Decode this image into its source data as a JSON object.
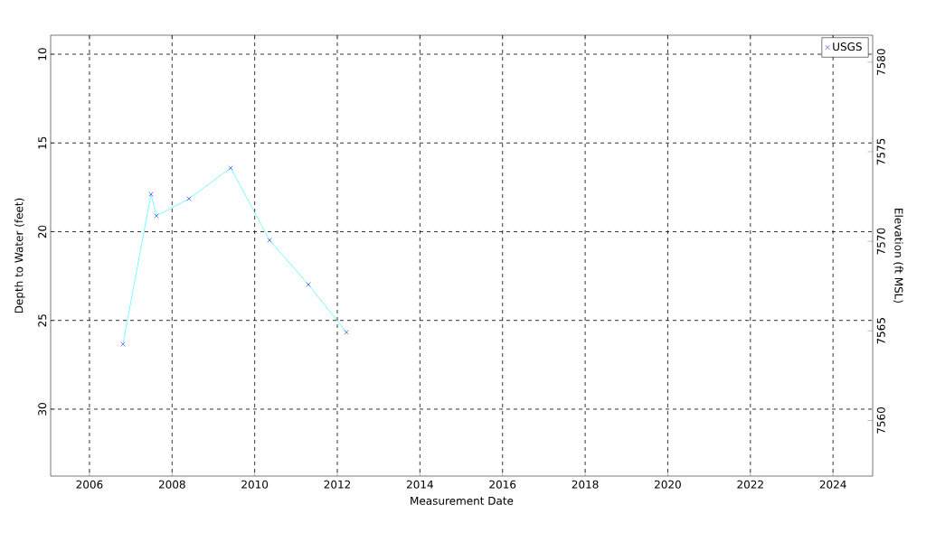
{
  "chart_data": {
    "type": "line",
    "xlabel": "Measurement Date",
    "ylabel": "Depth to Water (feet)",
    "y2label": "Elevation (ft MSL)",
    "xlim": [
      2005.06,
      2024.96
    ],
    "xticks": [
      2006,
      2008,
      2010,
      2012,
      2014,
      2016,
      2018,
      2020,
      2022,
      2024
    ],
    "ylim": [
      33.77,
      8.93
    ],
    "yticks": [
      10,
      15,
      20,
      25,
      30
    ],
    "y2lim": [
      7556.9,
      7581.5
    ],
    "y2ticks": [
      7560,
      7565,
      7570,
      7575,
      7580
    ],
    "grid": true,
    "legend": "top right",
    "line_style": "solid",
    "series": [
      {
        "color": "#00ffff",
        "marker": "none",
        "x": [
          2006.81,
          2007.49,
          2007.62,
          2008.41,
          2009.42,
          2010.36,
          2011.3,
          2012.22
        ],
        "values": [
          26.34,
          17.89,
          19.11,
          18.14,
          16.41,
          20.48,
          22.98,
          25.67
        ]
      },
      {
        "type": "scatter",
        "name": "USGS",
        "color": "#0000ff",
        "marker": "cross",
        "x": [
          2006.81,
          2007.49,
          2007.62,
          2008.41,
          2009.42,
          2010.36,
          2011.3,
          2012.22
        ],
        "values": [
          26.34,
          17.89,
          19.11,
          18.14,
          16.41,
          20.48,
          22.98,
          25.67
        ]
      }
    ]
  }
}
